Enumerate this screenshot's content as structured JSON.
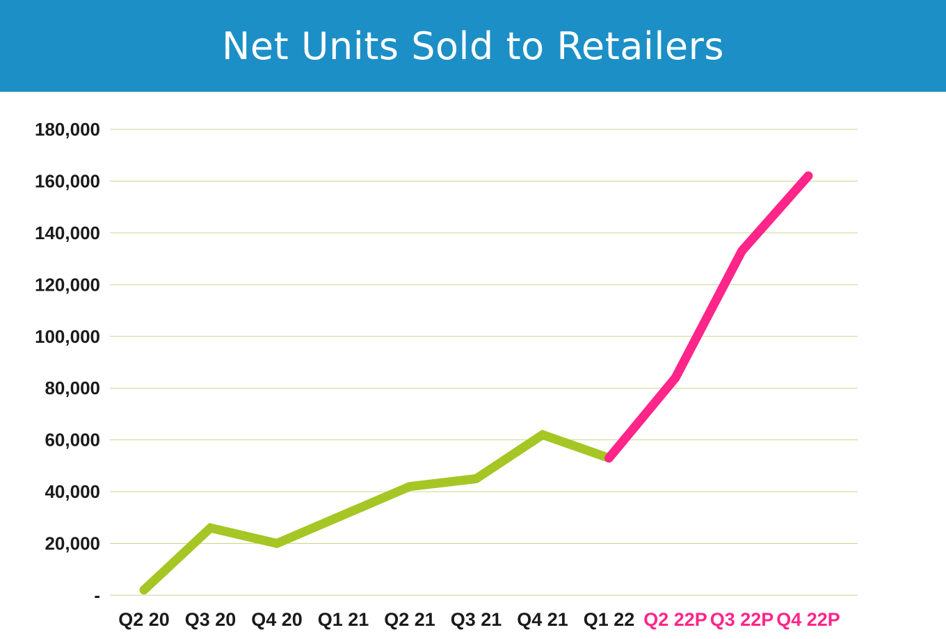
{
  "chart_data": {
    "type": "line",
    "title": "Net Units Sold to Retailers",
    "xlabel": "",
    "ylabel": "",
    "categories": [
      "Q2 20",
      "Q3 20",
      "Q4 20",
      "Q1 21",
      "Q2 21",
      "Q3 21",
      "Q4 21",
      "Q1 22",
      "Q2 22P",
      "Q3 22P",
      "Q4 22P"
    ],
    "y_tick_labels": [
      "-",
      "20,000",
      "40,000",
      "60,000",
      "80,000",
      "100,000",
      "120,000",
      "140,000",
      "160,000",
      "180,000"
    ],
    "ylim": [
      0,
      180000
    ],
    "grid": true,
    "legend": "none",
    "series": [
      {
        "actual_values": [
          2000,
          26000,
          20000,
          31000,
          42000,
          45000,
          62000,
          53000,
          null,
          null,
          null
        ],
        "projected_values": [
          null,
          null,
          null,
          null,
          null,
          null,
          null,
          53000,
          84000,
          133000,
          162000
        ]
      }
    ],
    "colors": {
      "actual": "#a5c625",
      "projected": "#ff2589",
      "header": "#1c8fc7",
      "grid": "#c6d68a",
      "axis_text": "#1a1a1a"
    }
  }
}
